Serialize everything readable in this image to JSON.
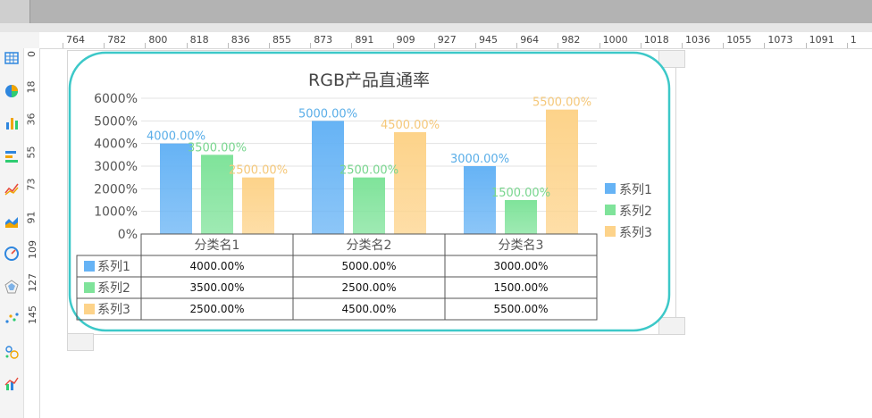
{
  "ruler": {
    "h_labels": [
      "764",
      "782",
      "800",
      "818",
      "836",
      "855",
      "873",
      "891",
      "909",
      "927",
      "945",
      "964",
      "982",
      "1000",
      "1018",
      "1036",
      "1055",
      "1073",
      "1091",
      "1"
    ],
    "v_labels": [
      "0",
      "18",
      "36",
      "55",
      "73",
      "91",
      "109",
      "127",
      "145"
    ]
  },
  "toolbar": {
    "tools": [
      {
        "icon": "table-icon",
        "color": "#2e86de"
      },
      {
        "icon": "pie-chart-icon",
        "color": "#f0a500"
      },
      {
        "icon": "bar-chart-icon",
        "color": "#f0a500"
      },
      {
        "icon": "horizontal-bar-icon",
        "color": "#f0a500"
      },
      {
        "icon": "line-chart-icon",
        "color": "#e74c3c"
      },
      {
        "icon": "area-chart-icon",
        "color": "#2e86de"
      },
      {
        "icon": "gauge-icon",
        "color": "#2e86de"
      },
      {
        "icon": "radar-chart-icon",
        "color": "#2e86de"
      },
      {
        "icon": "scatter-icon",
        "color": "#2e86de"
      },
      {
        "icon": "bubble-icon",
        "color": "#2e86de"
      },
      {
        "icon": "combo-chart-icon",
        "color": "#2e86de"
      }
    ]
  },
  "chart_data": {
    "type": "bar",
    "title": "RGB产品直通率",
    "categories": [
      "分类名1",
      "分类名2",
      "分类名3"
    ],
    "series": [
      {
        "name": "系列1",
        "values": [
          4000,
          5000,
          3000
        ],
        "labels": [
          "4000.00%",
          "5000.00%",
          "3000.00%"
        ],
        "color": "#66b3f5",
        "label_color": "#5aaee8"
      },
      {
        "name": "系列2",
        "values": [
          3500,
          2500,
          1500
        ],
        "labels": [
          "3500.00%",
          "2500.00%",
          "1500.00%"
        ],
        "color": "#7fe39a",
        "label_color": "#78d68e"
      },
      {
        "name": "系列3",
        "values": [
          2500,
          4500,
          5500
        ],
        "labels": [
          "2500.00%",
          "4500.00%",
          "5500.00%"
        ],
        "color": "#fdd38a",
        "label_color": "#f5c87a"
      }
    ],
    "y_ticks": [
      "0%",
      "1000%",
      "2000%",
      "3000%",
      "4000%",
      "5000%",
      "6000%"
    ],
    "ylim": [
      0,
      6000
    ],
    "grid": true,
    "legend_position": "right",
    "data_table": true,
    "border_color": "#3cc8c8"
  }
}
